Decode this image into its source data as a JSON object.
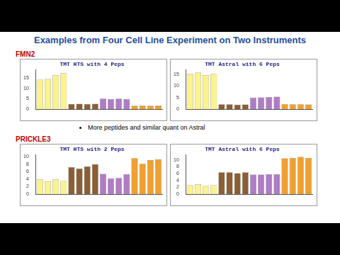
{
  "header": {
    "title": "Examples from Four Cell Line Experiment on Two Instruments"
  },
  "sections": [
    {
      "label": "FMN2",
      "bullet": "More peptides and similar quant on Astral"
    },
    {
      "label": "PRICKLE3"
    }
  ],
  "chart_data": [
    {
      "type": "bar",
      "title": "TMT HTS with 4 Peps",
      "categories": [
        null,
        null,
        null,
        null,
        null,
        null,
        null,
        null,
        null,
        null,
        null,
        null,
        null,
        null,
        null,
        null
      ],
      "values": [
        14.2,
        14.6,
        16.5,
        17.4,
        2.5,
        2.6,
        2.4,
        2.6,
        5.1,
        4.9,
        5.1,
        4.8,
        1.6,
        1.7,
        1.6,
        1.7
      ],
      "colors": [
        "#fbf38c",
        "#fbf38c",
        "#fbf38c",
        "#fbf38c",
        "#8b5e34",
        "#8b5e34",
        "#8b5e34",
        "#8b5e34",
        "#b07cc6",
        "#b07cc6",
        "#b07cc6",
        "#b07cc6",
        "#f0a030",
        "#f0a030",
        "#f0a030",
        "#f0a030"
      ],
      "ylim": [
        0,
        19
      ],
      "yticks": [
        0,
        5,
        10,
        15
      ],
      "grid": false
    },
    {
      "type": "bar",
      "title": "TMT Astral with 6 Peps",
      "categories": [
        null,
        null,
        null,
        null,
        null,
        null,
        null,
        null,
        null,
        null,
        null,
        null,
        null,
        null,
        null,
        null
      ],
      "values": [
        15.3,
        15.8,
        14.7,
        15.2,
        2.1,
        2.1,
        1.9,
        2.0,
        5.0,
        5.1,
        5.2,
        5.4,
        2.2,
        2.1,
        2.1,
        2.0
      ],
      "colors": [
        "#fbf38c",
        "#fbf38c",
        "#fbf38c",
        "#fbf38c",
        "#8b5e34",
        "#8b5e34",
        "#8b5e34",
        "#8b5e34",
        "#b07cc6",
        "#b07cc6",
        "#b07cc6",
        "#b07cc6",
        "#f0a030",
        "#f0a030",
        "#f0a030",
        "#f0a030"
      ],
      "ylim": [
        0,
        17
      ],
      "yticks": [
        0,
        5,
        10,
        15
      ],
      "grid": false
    },
    {
      "type": "bar",
      "title": "TMT HTS with 2 Peps",
      "categories": [
        null,
        null,
        null,
        null,
        null,
        null,
        null,
        null,
        null,
        null,
        null,
        null,
        null,
        null,
        null,
        null
      ],
      "values": [
        4.0,
        3.4,
        4.0,
        3.5,
        7.2,
        6.8,
        7.4,
        8.0,
        5.4,
        4.2,
        4.3,
        5.3,
        9.6,
        8.1,
        9.1,
        9.3
      ],
      "colors": [
        "#fbf38c",
        "#fbf38c",
        "#fbf38c",
        "#fbf38c",
        "#8b5e34",
        "#8b5e34",
        "#8b5e34",
        "#8b5e34",
        "#b07cc6",
        "#b07cc6",
        "#b07cc6",
        "#b07cc6",
        "#f0a030",
        "#f0a030",
        "#f0a030",
        "#f0a030"
      ],
      "ylim": [
        0,
        10.5
      ],
      "yticks": [
        0,
        2,
        4,
        6,
        8,
        10
      ],
      "grid": false
    },
    {
      "type": "bar",
      "title": "TMT Astral with 6 Peps",
      "categories": [
        null,
        null,
        null,
        null,
        null,
        null,
        null,
        null,
        null,
        null,
        null,
        null,
        null,
        null,
        null,
        null
      ],
      "values": [
        2.6,
        2.9,
        2.4,
        2.6,
        6.4,
        6.4,
        6.1,
        6.4,
        5.7,
        5.7,
        5.8,
        5.8,
        10.5,
        10.6,
        10.9,
        10.6
      ],
      "colors": [
        "#fbf38c",
        "#fbf38c",
        "#fbf38c",
        "#fbf38c",
        "#8b5e34",
        "#8b5e34",
        "#8b5e34",
        "#8b5e34",
        "#b07cc6",
        "#b07cc6",
        "#b07cc6",
        "#b07cc6",
        "#f0a030",
        "#f0a030",
        "#f0a030",
        "#f0a030"
      ],
      "ylim": [
        0,
        11.5
      ],
      "yticks": [
        0,
        2,
        4,
        6,
        8,
        10
      ],
      "grid": false
    }
  ]
}
